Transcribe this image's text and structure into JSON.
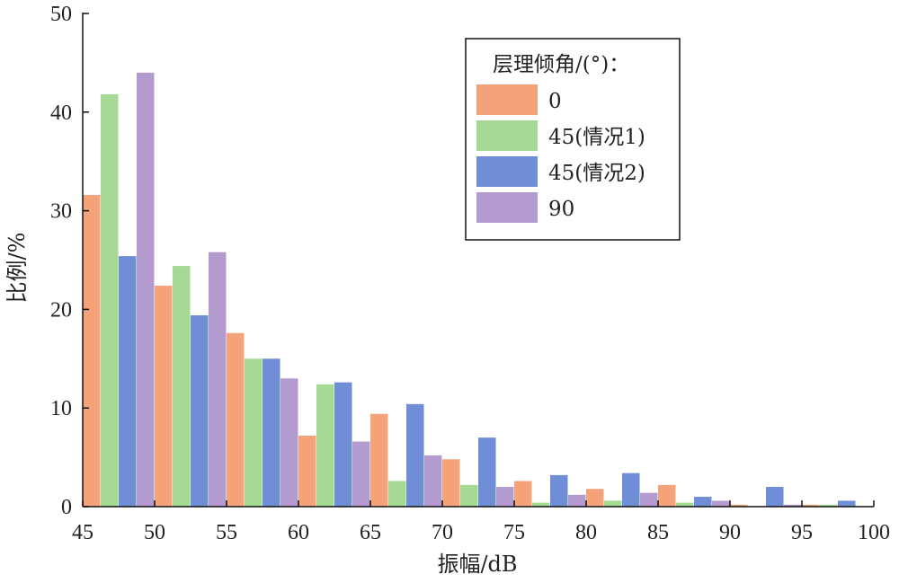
{
  "chart_data": {
    "type": "bar",
    "xlabel": "振幅/dB",
    "ylabel": "比例/%",
    "xlim": [
      45,
      100
    ],
    "ylim": [
      0,
      50
    ],
    "xticks": [
      "45",
      "50",
      "55",
      "60",
      "65",
      "70",
      "75",
      "80",
      "85",
      "90",
      "95",
      "100"
    ],
    "yticks": [
      "0",
      "10",
      "20",
      "30",
      "40",
      "50"
    ],
    "categories": [
      "45-50",
      "50-55",
      "55-60",
      "60-65",
      "65-70",
      "70-75",
      "75-80",
      "80-85",
      "85-90",
      "90-95",
      "95-100"
    ],
    "legend_title": "层理倾角/(°)：",
    "legend_position": "top-right",
    "grid": false,
    "series": [
      {
        "name": "0",
        "color": "#F4A27A",
        "values": [
          31.6,
          22.4,
          17.6,
          7.2,
          9.4,
          4.8,
          2.6,
          1.8,
          2.2,
          0.2,
          0.2
        ]
      },
      {
        "name": "45(情况1)",
        "color": "#A6D996",
        "values": [
          41.8,
          24.4,
          15.0,
          12.4,
          2.6,
          2.2,
          0.4,
          0.6,
          0.4,
          0.0,
          0.2
        ]
      },
      {
        "name": "45(情况2)",
        "color": "#6F8ED6",
        "values": [
          25.4,
          19.4,
          15.0,
          12.6,
          10.4,
          7.0,
          3.2,
          3.4,
          1.0,
          2.0,
          0.6
        ]
      },
      {
        "name": "90",
        "color": "#B39BCF",
        "values": [
          44.0,
          25.8,
          13.0,
          6.6,
          5.2,
          2.0,
          1.2,
          1.4,
          0.6,
          0.2,
          0.0
        ]
      }
    ]
  }
}
